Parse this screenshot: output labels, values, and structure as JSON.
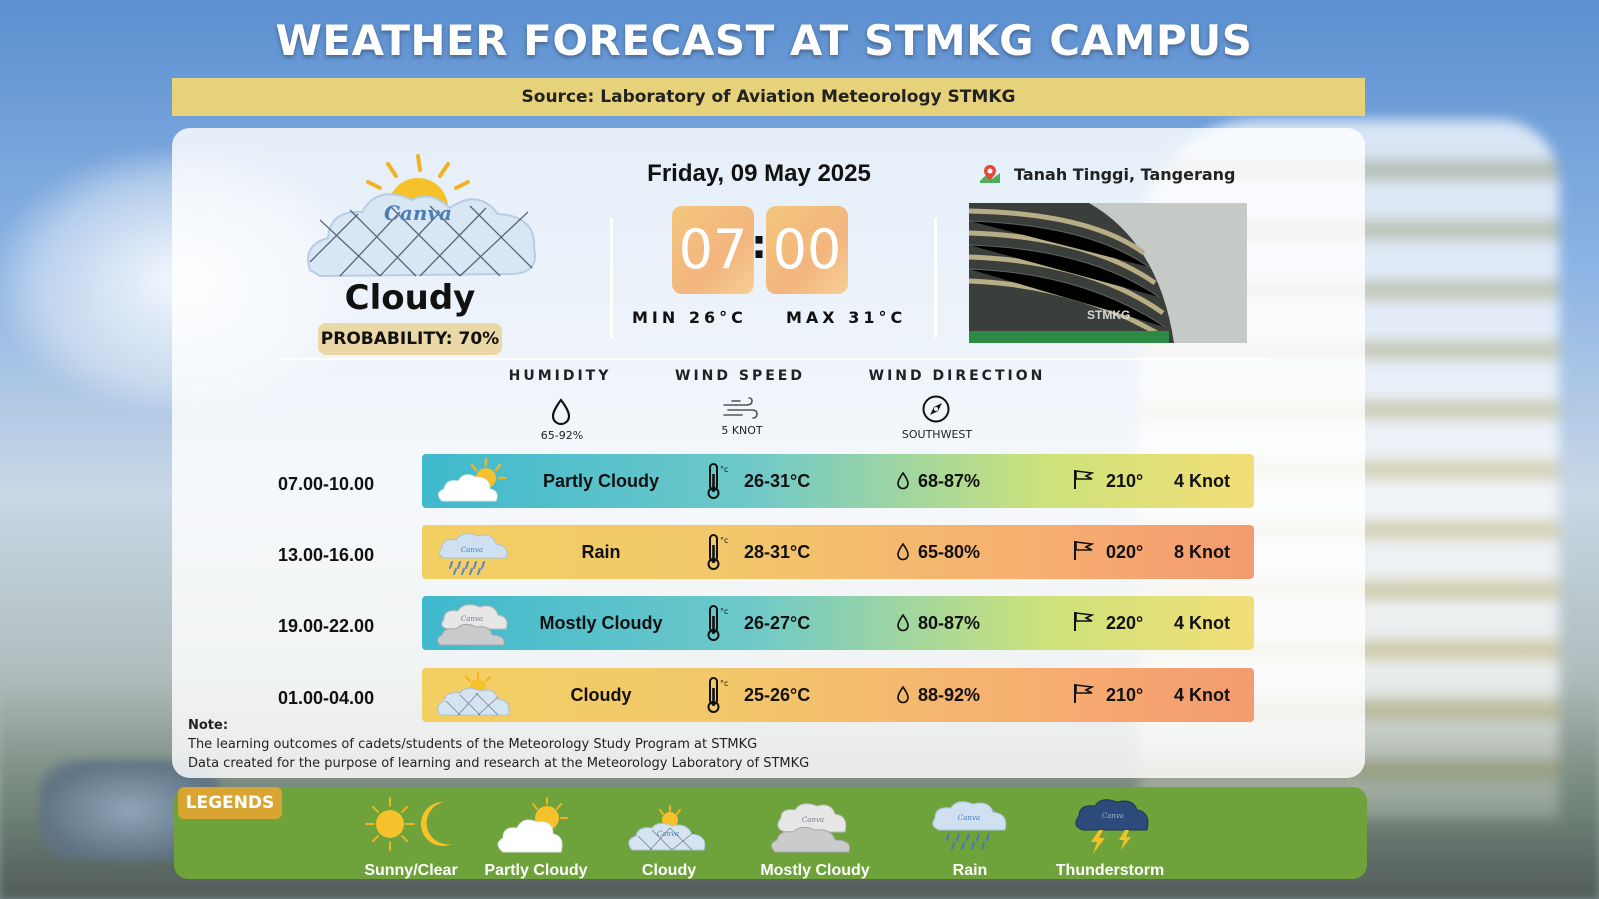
{
  "title": "WEATHER FORECAST AT STMKG CAMPUS",
  "source": "Source: Laboratory of Aviation Meteorology STMKG",
  "current": {
    "condition": "Cloudy",
    "probability": "PROBABILITY: 70%",
    "icon_brand": "Canva",
    "date": "Friday, 09 May 2025",
    "hour": "07",
    "minute": "00",
    "separator": ":",
    "min_temp": "MIN 26°C",
    "max_temp": "MAX 31°C",
    "location": "Tanah Tinggi, Tangerang",
    "photo_sign": "STMKG"
  },
  "stats": {
    "humidity_label": "HUMIDITY",
    "humidity_value": "65-92%",
    "wind_speed_label": "WIND SPEED",
    "wind_speed_value": "5 KNOT",
    "wind_dir_label": "WIND DIRECTION",
    "wind_dir_value": "SOUTHWEST"
  },
  "forecast": [
    {
      "time": "07.00-10.00",
      "condition": "Partly Cloudy",
      "temp": "26-31°C",
      "humidity": "68-87%",
      "direction": "210°",
      "speed": "4 Knot",
      "icon": "partly-cloudy-icon"
    },
    {
      "time": "13.00-16.00",
      "condition": "Rain",
      "temp": "28-31°C",
      "humidity": "65-80%",
      "direction": "020°",
      "speed": "8 Knot",
      "icon": "rain-icon"
    },
    {
      "time": "19.00-22.00",
      "condition": "Mostly Cloudy",
      "temp": "26-27°C",
      "humidity": "80-87%",
      "direction": "220°",
      "speed": "4 Knot",
      "icon": "mostly-cloudy-icon"
    },
    {
      "time": "01.00-04.00",
      "condition": "Cloudy",
      "temp": "25-26°C",
      "humidity": "88-92%",
      "direction": "210°",
      "speed": "4 Knot",
      "icon": "cloudy-icon"
    }
  ],
  "note": {
    "label": "Note:",
    "line1": "The learning outcomes of cadets/students of the Meteorology Study Program at STMKG",
    "line2": "Data created for the purpose of learning and research at the Meteorology Laboratory of STMKG"
  },
  "legends": {
    "label": "LEGENDS",
    "items": [
      "Sunny/Clear",
      "Partly Cloudy",
      "Cloudy",
      "Mostly Cloudy",
      "Rain",
      "Thunderstorm"
    ]
  },
  "colors": {
    "source_bar": "#e6d27a",
    "legend_panel": "#6ea23b",
    "legend_badge": "#d9a532",
    "row_teal": "#3fb9cd",
    "row_orange": "#f49b6f"
  }
}
